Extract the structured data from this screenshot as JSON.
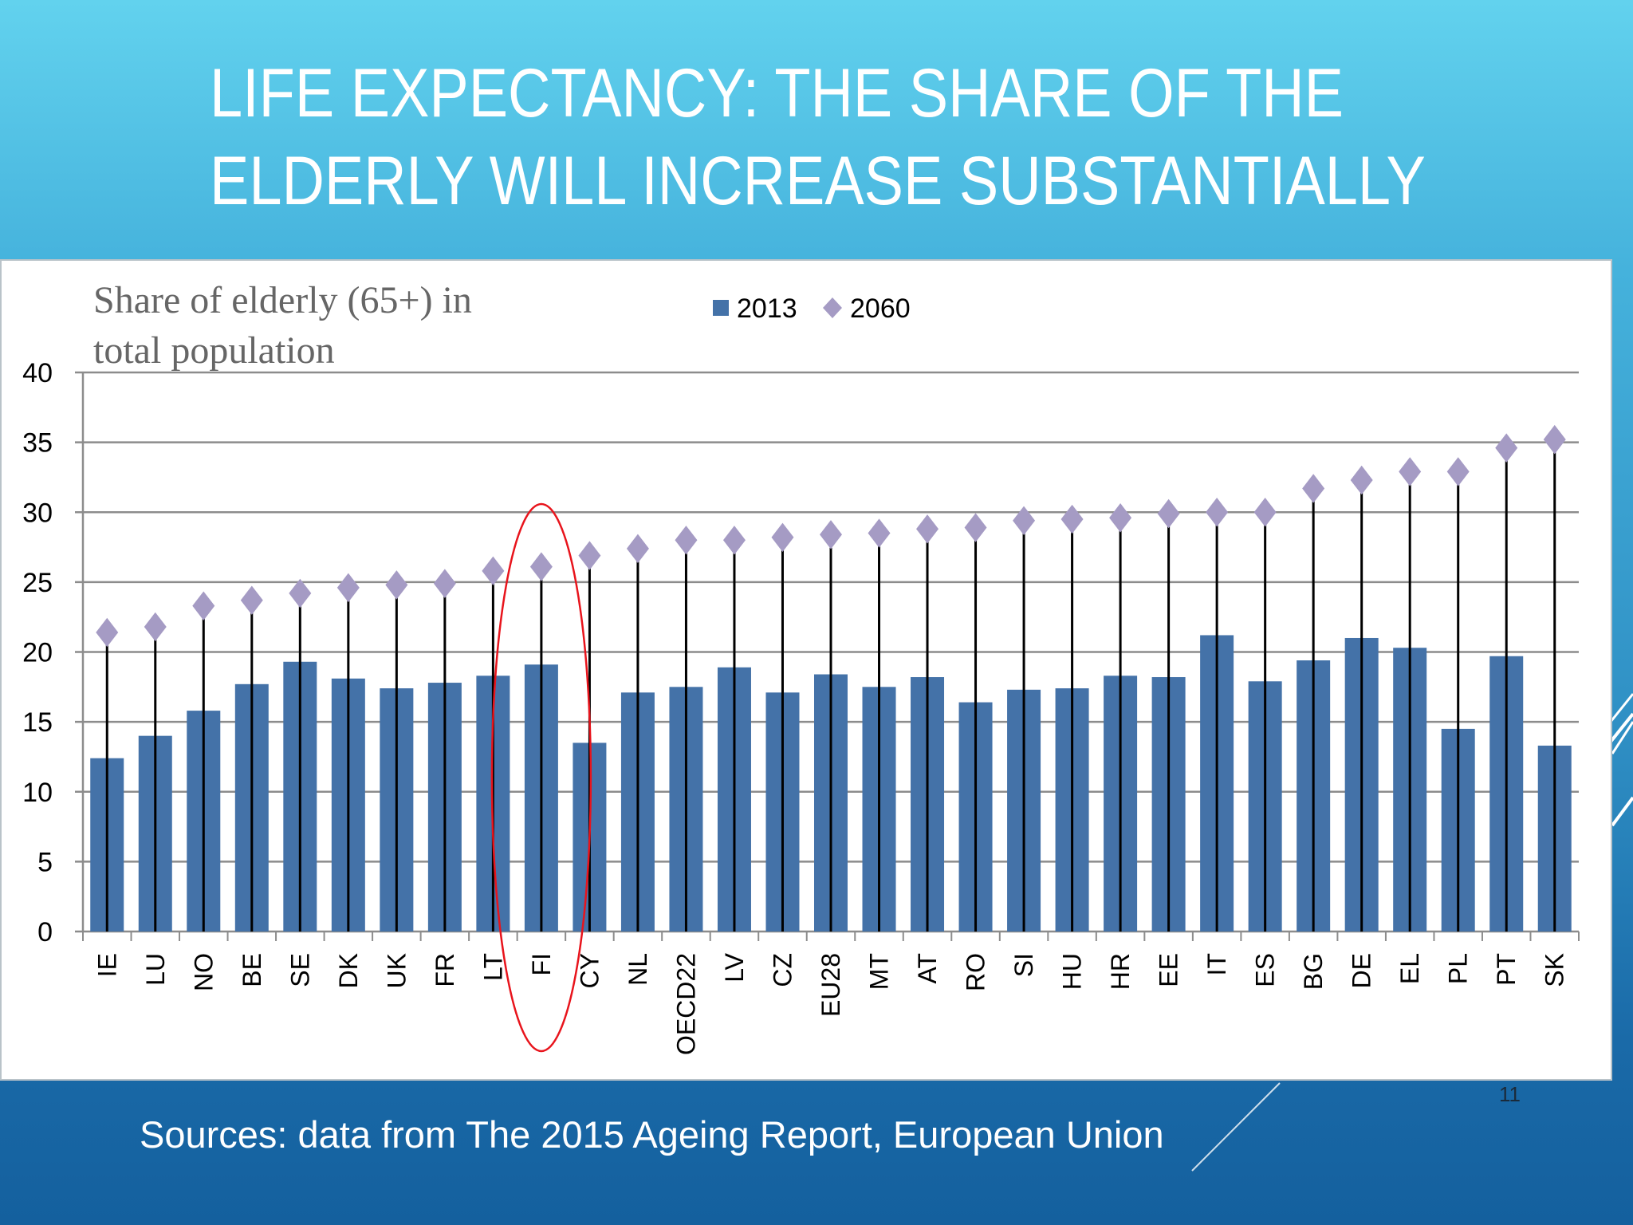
{
  "slide": {
    "title_line1": "LIFE EXPECTANCY: THE SHARE OF THE",
    "title_line2": "ELDERLY WILL INCREASE SUBSTANTIALLY",
    "sources": "Sources: data from The 2015 Ageing Report, European Union",
    "page_number": "11"
  },
  "colors": {
    "bar_2013": "#4472a8",
    "marker_2060": "#a59bc4",
    "highlight": "#e8141c"
  },
  "chart_data": {
    "type": "bar",
    "title_line1": "Share of elderly (65+) in",
    "title_line2": "total population",
    "legend_placement": "top",
    "grid": true,
    "ylim": [
      0,
      40
    ],
    "yticks": [
      "0",
      "5",
      "10",
      "15",
      "20",
      "25",
      "30",
      "35",
      "40"
    ],
    "highlighted_category": "FI",
    "categories": [
      "IE",
      "LU",
      "NO",
      "BE",
      "SE",
      "DK",
      "UK",
      "FR",
      "LT",
      "FI",
      "CY",
      "NL",
      "OECD22",
      "LV",
      "CZ",
      "EU28",
      "MT",
      "AT",
      "RO",
      "SI",
      "HU",
      "HR",
      "EE",
      "IT",
      "ES",
      "BG",
      "DE",
      "EL",
      "PL",
      "PT",
      "SK"
    ],
    "series": [
      {
        "name": "2013",
        "kind": "bar",
        "values": [
          12.4,
          14.0,
          15.8,
          17.7,
          19.3,
          18.1,
          17.4,
          17.8,
          18.3,
          19.1,
          13.5,
          17.1,
          17.5,
          18.9,
          17.1,
          18.4,
          17.5,
          18.2,
          16.4,
          17.3,
          17.4,
          18.3,
          18.2,
          21.2,
          17.9,
          19.4,
          21.0,
          20.3,
          14.5,
          19.7,
          13.3
        ]
      },
      {
        "name": "2060",
        "kind": "diamond-marker",
        "values": [
          21.4,
          21.8,
          23.3,
          23.7,
          24.2,
          24.6,
          24.8,
          24.9,
          25.8,
          26.1,
          26.9,
          27.4,
          28.0,
          28.0,
          28.2,
          28.4,
          28.5,
          28.8,
          28.9,
          29.4,
          29.5,
          29.6,
          29.9,
          30.0,
          30.0,
          31.7,
          32.3,
          32.9,
          32.9,
          34.6,
          35.2
        ]
      }
    ]
  }
}
